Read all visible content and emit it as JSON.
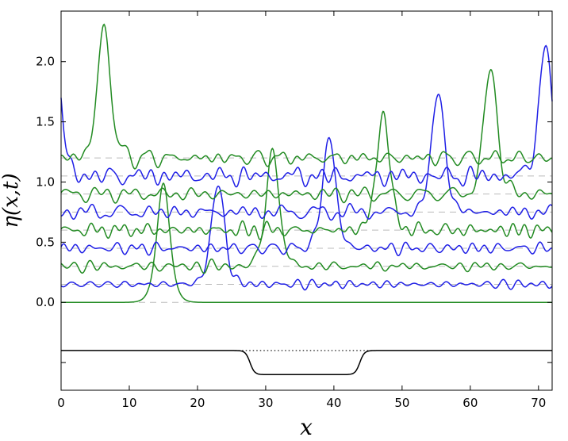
{
  "chart_data": {
    "type": "line",
    "title": "",
    "xlabel": "x",
    "ylabel": "η(x,t)",
    "xlim": [
      0,
      72
    ],
    "ylim": [
      -0.73,
      2.42
    ],
    "x_ticks": [
      0,
      10,
      20,
      30,
      40,
      50,
      60,
      70
    ],
    "x_tick_labels": [
      "0",
      "10",
      "20",
      "30",
      "40",
      "50",
      "60",
      "70"
    ],
    "y_ticks": [
      0.0,
      0.5,
      1.0,
      1.5,
      2.0
    ],
    "y_tick_labels": [
      "0.0",
      "0.5",
      "1.0",
      "1.5",
      "2.0"
    ],
    "grid": false,
    "colors": {
      "green": "#228b22",
      "blue": "#1f1fe6",
      "baseline": "#bbbbbb",
      "bathymetry": "#000000"
    },
    "series": [
      {
        "color": "green",
        "offset": 0.0,
        "peak_x": 15.0,
        "peak_height": 0.99,
        "noise": 0.0
      },
      {
        "color": "blue",
        "offset": 0.15,
        "peak_x": 23.0,
        "peak_height": 0.85,
        "noise": 0.012
      },
      {
        "color": "green",
        "offset": 0.3,
        "peak_x": 31.0,
        "peak_height": 0.97,
        "noise": 0.015
      },
      {
        "color": "blue",
        "offset": 0.45,
        "peak_x": 39.3,
        "peak_height": 0.93,
        "noise": 0.018
      },
      {
        "color": "green",
        "offset": 0.6,
        "peak_x": 47.2,
        "peak_height": 0.98,
        "noise": 0.02
      },
      {
        "color": "blue",
        "offset": 0.75,
        "peak_x": 55.3,
        "peak_height": 1.02,
        "noise": 0.022
      },
      {
        "color": "green",
        "offset": 0.9,
        "peak_x": 63.0,
        "peak_height": 1.07,
        "noise": 0.024
      },
      {
        "color": "blue",
        "offset": 1.05,
        "peak_x": 71.0,
        "peak_height": 1.08,
        "noise": 0.026
      },
      {
        "color": "green",
        "offset": 1.2,
        "peak_x": 6.3,
        "peak_height": 1.09,
        "noise": 0.028
      }
    ],
    "bathymetry": {
      "level": -0.4,
      "trench_level": -0.6,
      "trench_start": 25.5,
      "trench_end": 46.0
    }
  }
}
